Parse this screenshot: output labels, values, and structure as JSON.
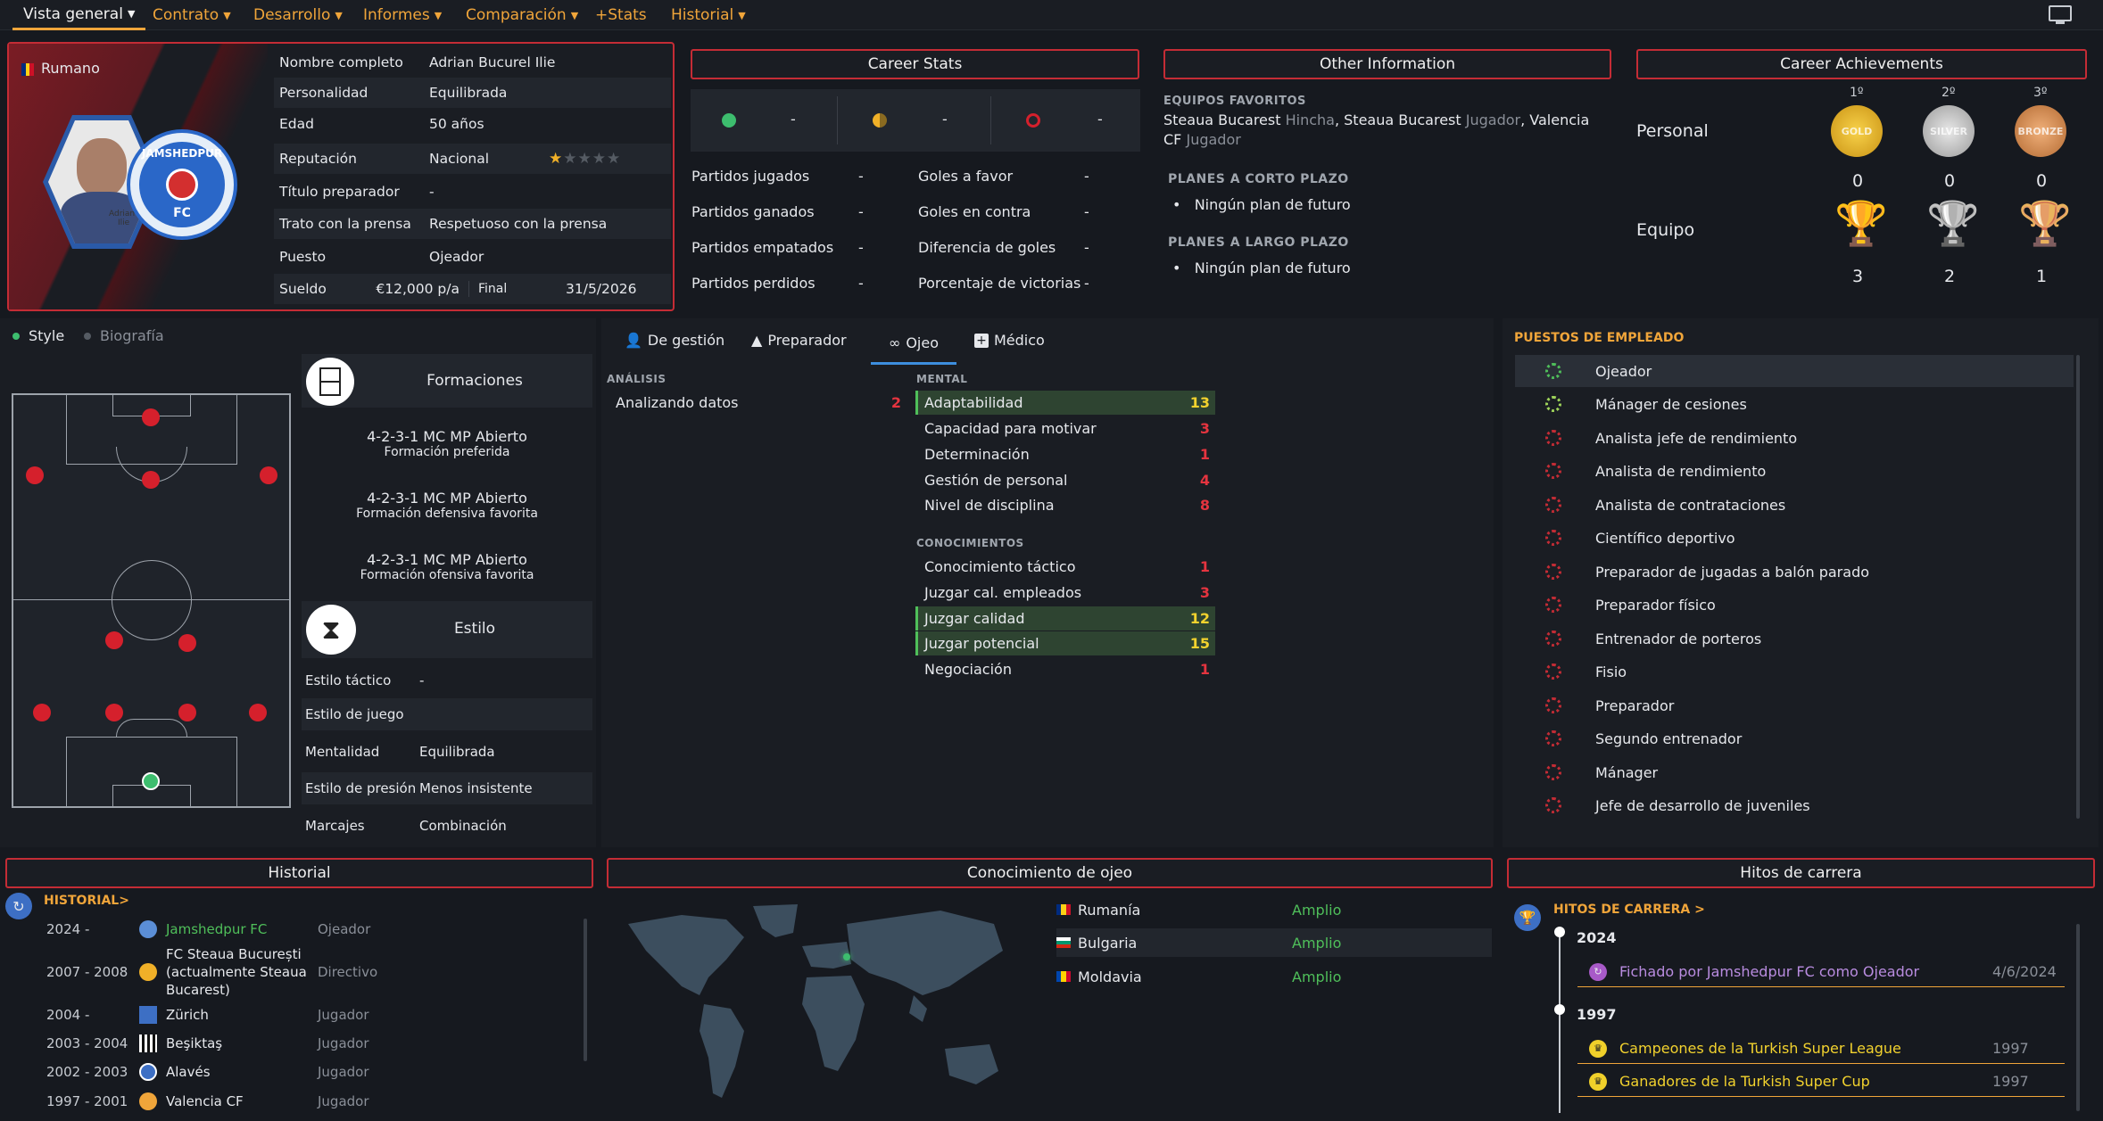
{
  "nav": {
    "items": [
      "Vista general",
      "Contrato",
      "Desarrollo",
      "Informes",
      "Comparación",
      "+Stats",
      "Historial"
    ],
    "screen_icon": "monitor-icon"
  },
  "profile": {
    "nationality": "Rumano",
    "portrait_caption_1": "Adrian",
    "portrait_caption_2": "Ilie",
    "club_badge_top": "JAMSHEDPUR",
    "club_badge_bottom": "FC",
    "rows": [
      {
        "k": "Nombre completo",
        "v": "Adrian Bucurel Ilie"
      },
      {
        "k": "Personalidad",
        "v": "Equilibrada"
      },
      {
        "k": "Edad",
        "v": "50 años"
      },
      {
        "k": "Reputación",
        "v": "Nacional"
      },
      {
        "k": "Título preparador",
        "v": "-"
      },
      {
        "k": "Trato con la prensa",
        "v": "Respetuoso con la prensa"
      },
      {
        "k": "Puesto",
        "v": "Ojeador"
      }
    ],
    "reputation_stars": 1,
    "reputation_max": 5,
    "salary_label": "Sueldo",
    "salary": "€12,000 p/a",
    "end_label": "Final",
    "end_date": "31/5/2026"
  },
  "career_stats": {
    "title": "Career Stats",
    "dashes": [
      "-",
      "-",
      "-"
    ],
    "left": [
      {
        "k": "Partidos jugados",
        "v": "-"
      },
      {
        "k": "Partidos ganados",
        "v": "-"
      },
      {
        "k": "Partidos empatados",
        "v": "-"
      },
      {
        "k": "Partidos perdidos",
        "v": "-"
      }
    ],
    "right": [
      {
        "k": "Goles a favor",
        "v": "-"
      },
      {
        "k": "Goles en contra",
        "v": "-"
      },
      {
        "k": "Diferencia de goles",
        "v": "-"
      },
      {
        "k": "Porcentaje de victorias",
        "v": "-"
      }
    ]
  },
  "other_info": {
    "title": "Other Information",
    "fav_label": "EQUIPOS FAVORITOS",
    "fav": [
      {
        "team": "Steaua Bucarest",
        "role": "Hincha"
      },
      {
        "team": "Steaua Bucarest",
        "role": "Jugador"
      },
      {
        "team": "Valencia CF",
        "role": "Jugador"
      }
    ],
    "short_label": "PLANES A CORTO PLAZO",
    "short_plan": "Ningún plan de futuro",
    "long_label": "PLANES A LARGO PLAZO",
    "long_plan": "Ningún plan de futuro"
  },
  "achievements": {
    "title": "Career Achievements",
    "places": [
      "1º",
      "2º",
      "3º"
    ],
    "medal_labels": [
      "GOLD",
      "SILVER",
      "BRONZE"
    ],
    "personal_label": "Personal",
    "personal": [
      "0",
      "0",
      "0"
    ],
    "team_label": "Equipo",
    "team": [
      "3",
      "2",
      "1"
    ]
  },
  "left_tabs": [
    "Style",
    "Biografía"
  ],
  "formations": {
    "title": "Formaciones",
    "items": [
      {
        "name": "4-2-3-1 MC MP Abierto",
        "desc": "Formación preferida"
      },
      {
        "name": "4-2-3-1 MC MP Abierto",
        "desc": "Formación defensiva favorita"
      },
      {
        "name": "4-2-3-1 MC MP Abierto",
        "desc": "Formación ofensiva favorita"
      }
    ]
  },
  "style": {
    "title": "Estilo",
    "rows": [
      {
        "k": "Estilo táctico",
        "v": "-"
      },
      {
        "k": "Estilo de juego",
        "v": ""
      },
      {
        "k": "Mentalidad",
        "v": "Equilibrada"
      },
      {
        "k": "Estilo de presión",
        "v": "Menos insistente"
      },
      {
        "k": "Marcajes",
        "v": "Combinación"
      }
    ]
  },
  "center_tabs": [
    "De gestión",
    "Preparador",
    "Ojeo",
    "Médico"
  ],
  "analysis": {
    "label": "ANÁLISIS",
    "name": "Analizando datos",
    "value": "2"
  },
  "mental": {
    "label": "MENTAL",
    "items": [
      {
        "name": "Adaptabilidad",
        "value": "13"
      },
      {
        "name": "Capacidad para motivar",
        "value": "3"
      },
      {
        "name": "Determinación",
        "value": "1"
      },
      {
        "name": "Gestión de personal",
        "value": "4"
      },
      {
        "name": "Nivel de disciplina",
        "value": "8"
      }
    ]
  },
  "knowledge": {
    "label": "CONOCIMIENTOS",
    "items": [
      {
        "name": "Conocimiento táctico",
        "value": "1"
      },
      {
        "name": "Juzgar cal. empleados",
        "value": "3"
      },
      {
        "name": "Juzgar calidad",
        "value": "12"
      },
      {
        "name": "Juzgar potencial",
        "value": "15"
      },
      {
        "name": "Negociación",
        "value": "1"
      }
    ]
  },
  "roles": {
    "title": "PUESTOS DE EMPLEADO",
    "items": [
      "Ojeador",
      "Mánager de cesiones",
      "Analista jefe de rendimiento",
      "Analista de rendimiento",
      "Analista de contrataciones",
      "Científico deportivo",
      "Preparador de jugadas a balón parado",
      "Preparador físico",
      "Entrenador de porteros",
      "Fisio",
      "Preparador",
      "Segundo entrenador",
      "Mánager",
      "Jefe de desarrollo de juveniles"
    ]
  },
  "history": {
    "title": "Historial",
    "link": "HISTORIAL",
    "rows": [
      {
        "years": "2024 -",
        "club": "Jamshedpur FC",
        "role": "Ojeador"
      },
      {
        "years": "2007 - 2008",
        "club": "FC Steaua București (actualmente Steaua Bucarest)",
        "role": "Directivo"
      },
      {
        "years": "2004 -",
        "club": "Zürich",
        "role": "Jugador"
      },
      {
        "years": "2003 - 2004",
        "club": "Beşiktaş",
        "role": "Jugador"
      },
      {
        "years": "2002 - 2003",
        "club": "Alavés",
        "role": "Jugador"
      },
      {
        "years": "1997 - 2001",
        "club": "Valencia CF",
        "role": "Jugador"
      }
    ]
  },
  "scouting": {
    "title": "Conocimiento de ojeo",
    "countries": [
      {
        "name": "Rumanía",
        "level": "Amplio"
      },
      {
        "name": "Bulgaria",
        "level": "Amplio"
      },
      {
        "name": "Moldavia",
        "level": "Amplio"
      }
    ]
  },
  "milestones": {
    "title": "Hitos de carrera",
    "link": "HITOS DE CARRERA",
    "years": [
      "2024",
      "1997"
    ],
    "items": [
      {
        "text": "Fichado por Jamshedpur FC como Ojeador",
        "date": "4/6/2024"
      },
      {
        "text": "Campeones de la Turkish Super League",
        "date": "1997"
      },
      {
        "text": "Ganadores de la Turkish Super Cup",
        "date": "1997"
      }
    ]
  },
  "colors": {
    "accent": "#f0a53a",
    "border": "#c42c35",
    "good": "#4fbf5a",
    "bad": "#e5343f",
    "highlight": "#2e4431"
  }
}
